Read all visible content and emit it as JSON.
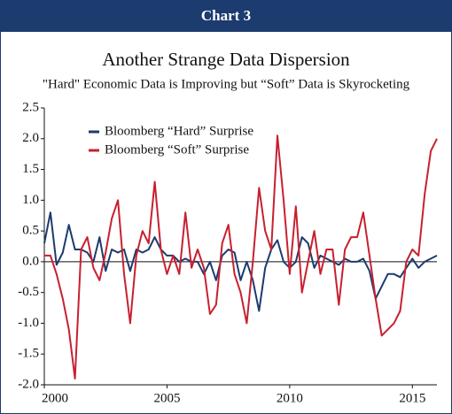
{
  "header": "Chart 3",
  "chart_data": {
    "type": "line",
    "title": "Another Strange Data Dispersion",
    "subtitle": "\"Hard\" Economic Data is Improving but “Soft” Data is Skyrocketing",
    "x": [
      2000,
      2000.25,
      2000.5,
      2000.75,
      2001,
      2001.25,
      2001.5,
      2001.75,
      2002,
      2002.25,
      2002.5,
      2002.75,
      2003,
      2003.25,
      2003.5,
      2003.75,
      2004,
      2004.25,
      2004.5,
      2004.75,
      2005,
      2005.25,
      2005.5,
      2005.75,
      2006,
      2006.25,
      2006.5,
      2006.75,
      2007,
      2007.25,
      2007.5,
      2007.75,
      2008,
      2008.25,
      2008.5,
      2008.75,
      2009,
      2009.25,
      2009.5,
      2009.75,
      2010,
      2010.25,
      2010.5,
      2010.75,
      2011,
      2011.25,
      2011.5,
      2011.75,
      2012,
      2012.25,
      2012.5,
      2012.75,
      2013,
      2013.25,
      2013.5,
      2013.75,
      2014,
      2014.25,
      2014.5,
      2014.75,
      2015,
      2015.25,
      2015.5,
      2015.75,
      2016
    ],
    "series": [
      {
        "name": "Bloomberg “Hard” Surprise",
        "color": "#1c3b6e",
        "values": [
          0.3,
          0.8,
          -0.05,
          0.15,
          0.6,
          0.2,
          0.2,
          0.15,
          0.0,
          0.4,
          -0.15,
          0.2,
          0.15,
          0.2,
          -0.15,
          0.2,
          0.15,
          0.2,
          0.4,
          0.2,
          0.1,
          0.1,
          0.0,
          0.05,
          0.0,
          0.0,
          -0.2,
          0.0,
          -0.3,
          0.1,
          0.2,
          0.15,
          -0.3,
          0.0,
          -0.3,
          -0.8,
          -0.1,
          0.2,
          0.35,
          0.0,
          -0.1,
          0.0,
          0.4,
          0.3,
          -0.1,
          0.1,
          0.05,
          0.0,
          -0.05,
          0.05,
          0.0,
          0.0,
          0.05,
          -0.15,
          -0.6,
          -0.4,
          -0.2,
          -0.2,
          -0.25,
          -0.1,
          0.05,
          -0.1,
          0.0,
          0.05,
          0.1
        ]
      },
      {
        "name": "Bloomberg “Soft” Surprise",
        "color": "#c8202f",
        "values": [
          0.1,
          0.1,
          -0.2,
          -0.6,
          -1.1,
          -1.9,
          0.2,
          0.4,
          -0.1,
          -0.3,
          0.15,
          0.7,
          1.0,
          -0.2,
          -1.0,
          0.1,
          0.5,
          0.3,
          1.3,
          0.2,
          -0.2,
          0.1,
          -0.2,
          0.8,
          -0.1,
          0.2,
          -0.1,
          -0.85,
          -0.7,
          0.3,
          0.6,
          -0.2,
          -0.5,
          -1.0,
          0.0,
          1.2,
          0.5,
          0.2,
          2.05,
          1.0,
          -0.2,
          0.9,
          -0.5,
          0.0,
          0.5,
          -0.2,
          0.2,
          0.2,
          -0.7,
          0.2,
          0.4,
          0.4,
          0.8,
          0.1,
          -0.6,
          -1.2,
          -1.1,
          -1.0,
          -0.8,
          0.0,
          0.2,
          0.1,
          1.1,
          1.8,
          2.0
        ]
      }
    ],
    "xlim": [
      2000,
      2016
    ],
    "xticks": [
      2000,
      2005,
      2010,
      2015
    ],
    "ylim": [
      -2.0,
      2.5
    ],
    "yticks": [
      {
        "value": -2.0,
        "label": "-2.0"
      },
      {
        "value": -1.5,
        "label": "-1.5"
      },
      {
        "value": -1.0,
        "label": "-1.0"
      },
      {
        "value": -0.5,
        "label": "-0.5"
      },
      {
        "value": 0,
        "label": "0.0"
      },
      {
        "value": 0.5,
        "label": "0.5"
      },
      {
        "value": 1.0,
        "label": "1.0"
      },
      {
        "value": 1.5,
        "label": "1.5"
      },
      {
        "value": 2.0,
        "label": "2.0"
      },
      {
        "value": 2.5,
        "label": "2.5"
      }
    ],
    "zero_line": true,
    "legend": "upper left"
  }
}
